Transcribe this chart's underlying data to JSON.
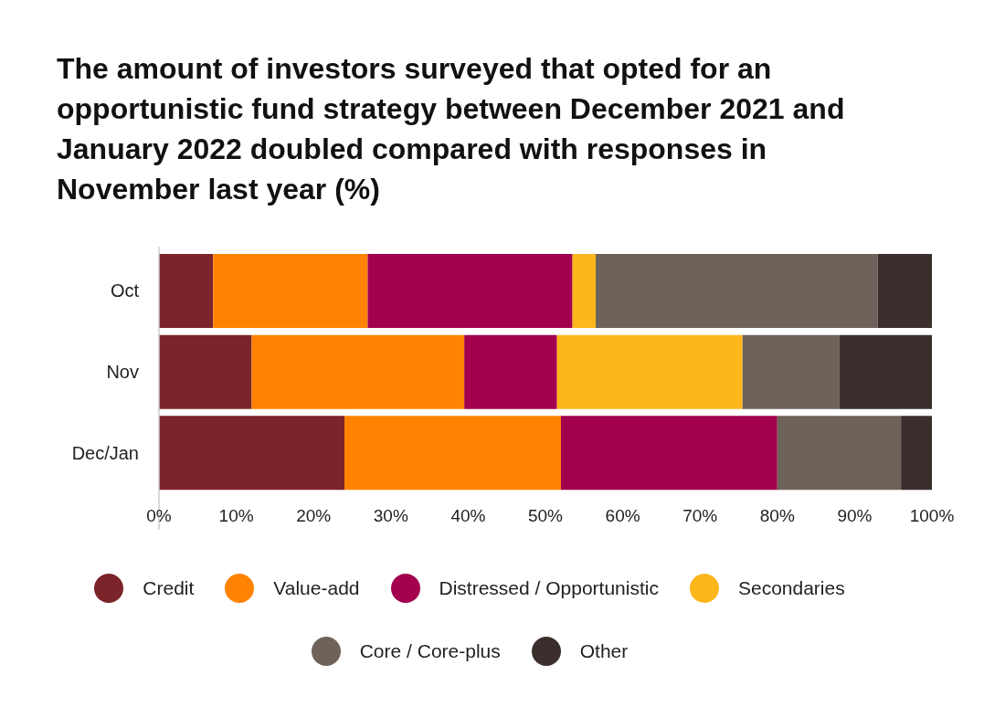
{
  "chart_data": {
    "type": "bar",
    "orientation": "horizontal",
    "stacked": true,
    "title": "The amount of investors surveyed that opted for an opportunistic fund strategy between December 2021 and January 2022 doubled compared with responses in November last year (%)",
    "categories": [
      "Oct",
      "Nov",
      "Dec/Jan"
    ],
    "series": [
      {
        "name": "Credit",
        "color": "#7b2429",
        "values": [
          7,
          12,
          24
        ]
      },
      {
        "name": "Value-add",
        "color": "#ff8300",
        "values": [
          20,
          27.5,
          28
        ]
      },
      {
        "name": "Distressed / Opportunistic",
        "color": "#a3004d",
        "values": [
          26.5,
          12,
          28
        ]
      },
      {
        "name": "Secondaries",
        "color": "#fdb71b",
        "values": [
          3,
          24,
          0
        ]
      },
      {
        "name": "Core / Core-plus",
        "color": "#6e625a",
        "values": [
          36.5,
          12.5,
          16
        ]
      },
      {
        "name": "Other",
        "color": "#3a2f2c",
        "values": [
          7,
          12,
          4
        ]
      }
    ],
    "xlim": [
      0,
      100
    ],
    "xticks": [
      {
        "value": 0,
        "label": "0%"
      },
      {
        "value": 10,
        "label": "10%"
      },
      {
        "value": 20,
        "label": "20%"
      },
      {
        "value": 30,
        "label": "30%"
      },
      {
        "value": 40,
        "label": "40%"
      },
      {
        "value": 50,
        "label": "50%"
      },
      {
        "value": 60,
        "label": "60%"
      },
      {
        "value": 70,
        "label": "70%"
      },
      {
        "value": 80,
        "label": "80%"
      },
      {
        "value": 90,
        "label": "90%"
      },
      {
        "value": 100,
        "label": "100%"
      }
    ],
    "legend": "bottom"
  }
}
